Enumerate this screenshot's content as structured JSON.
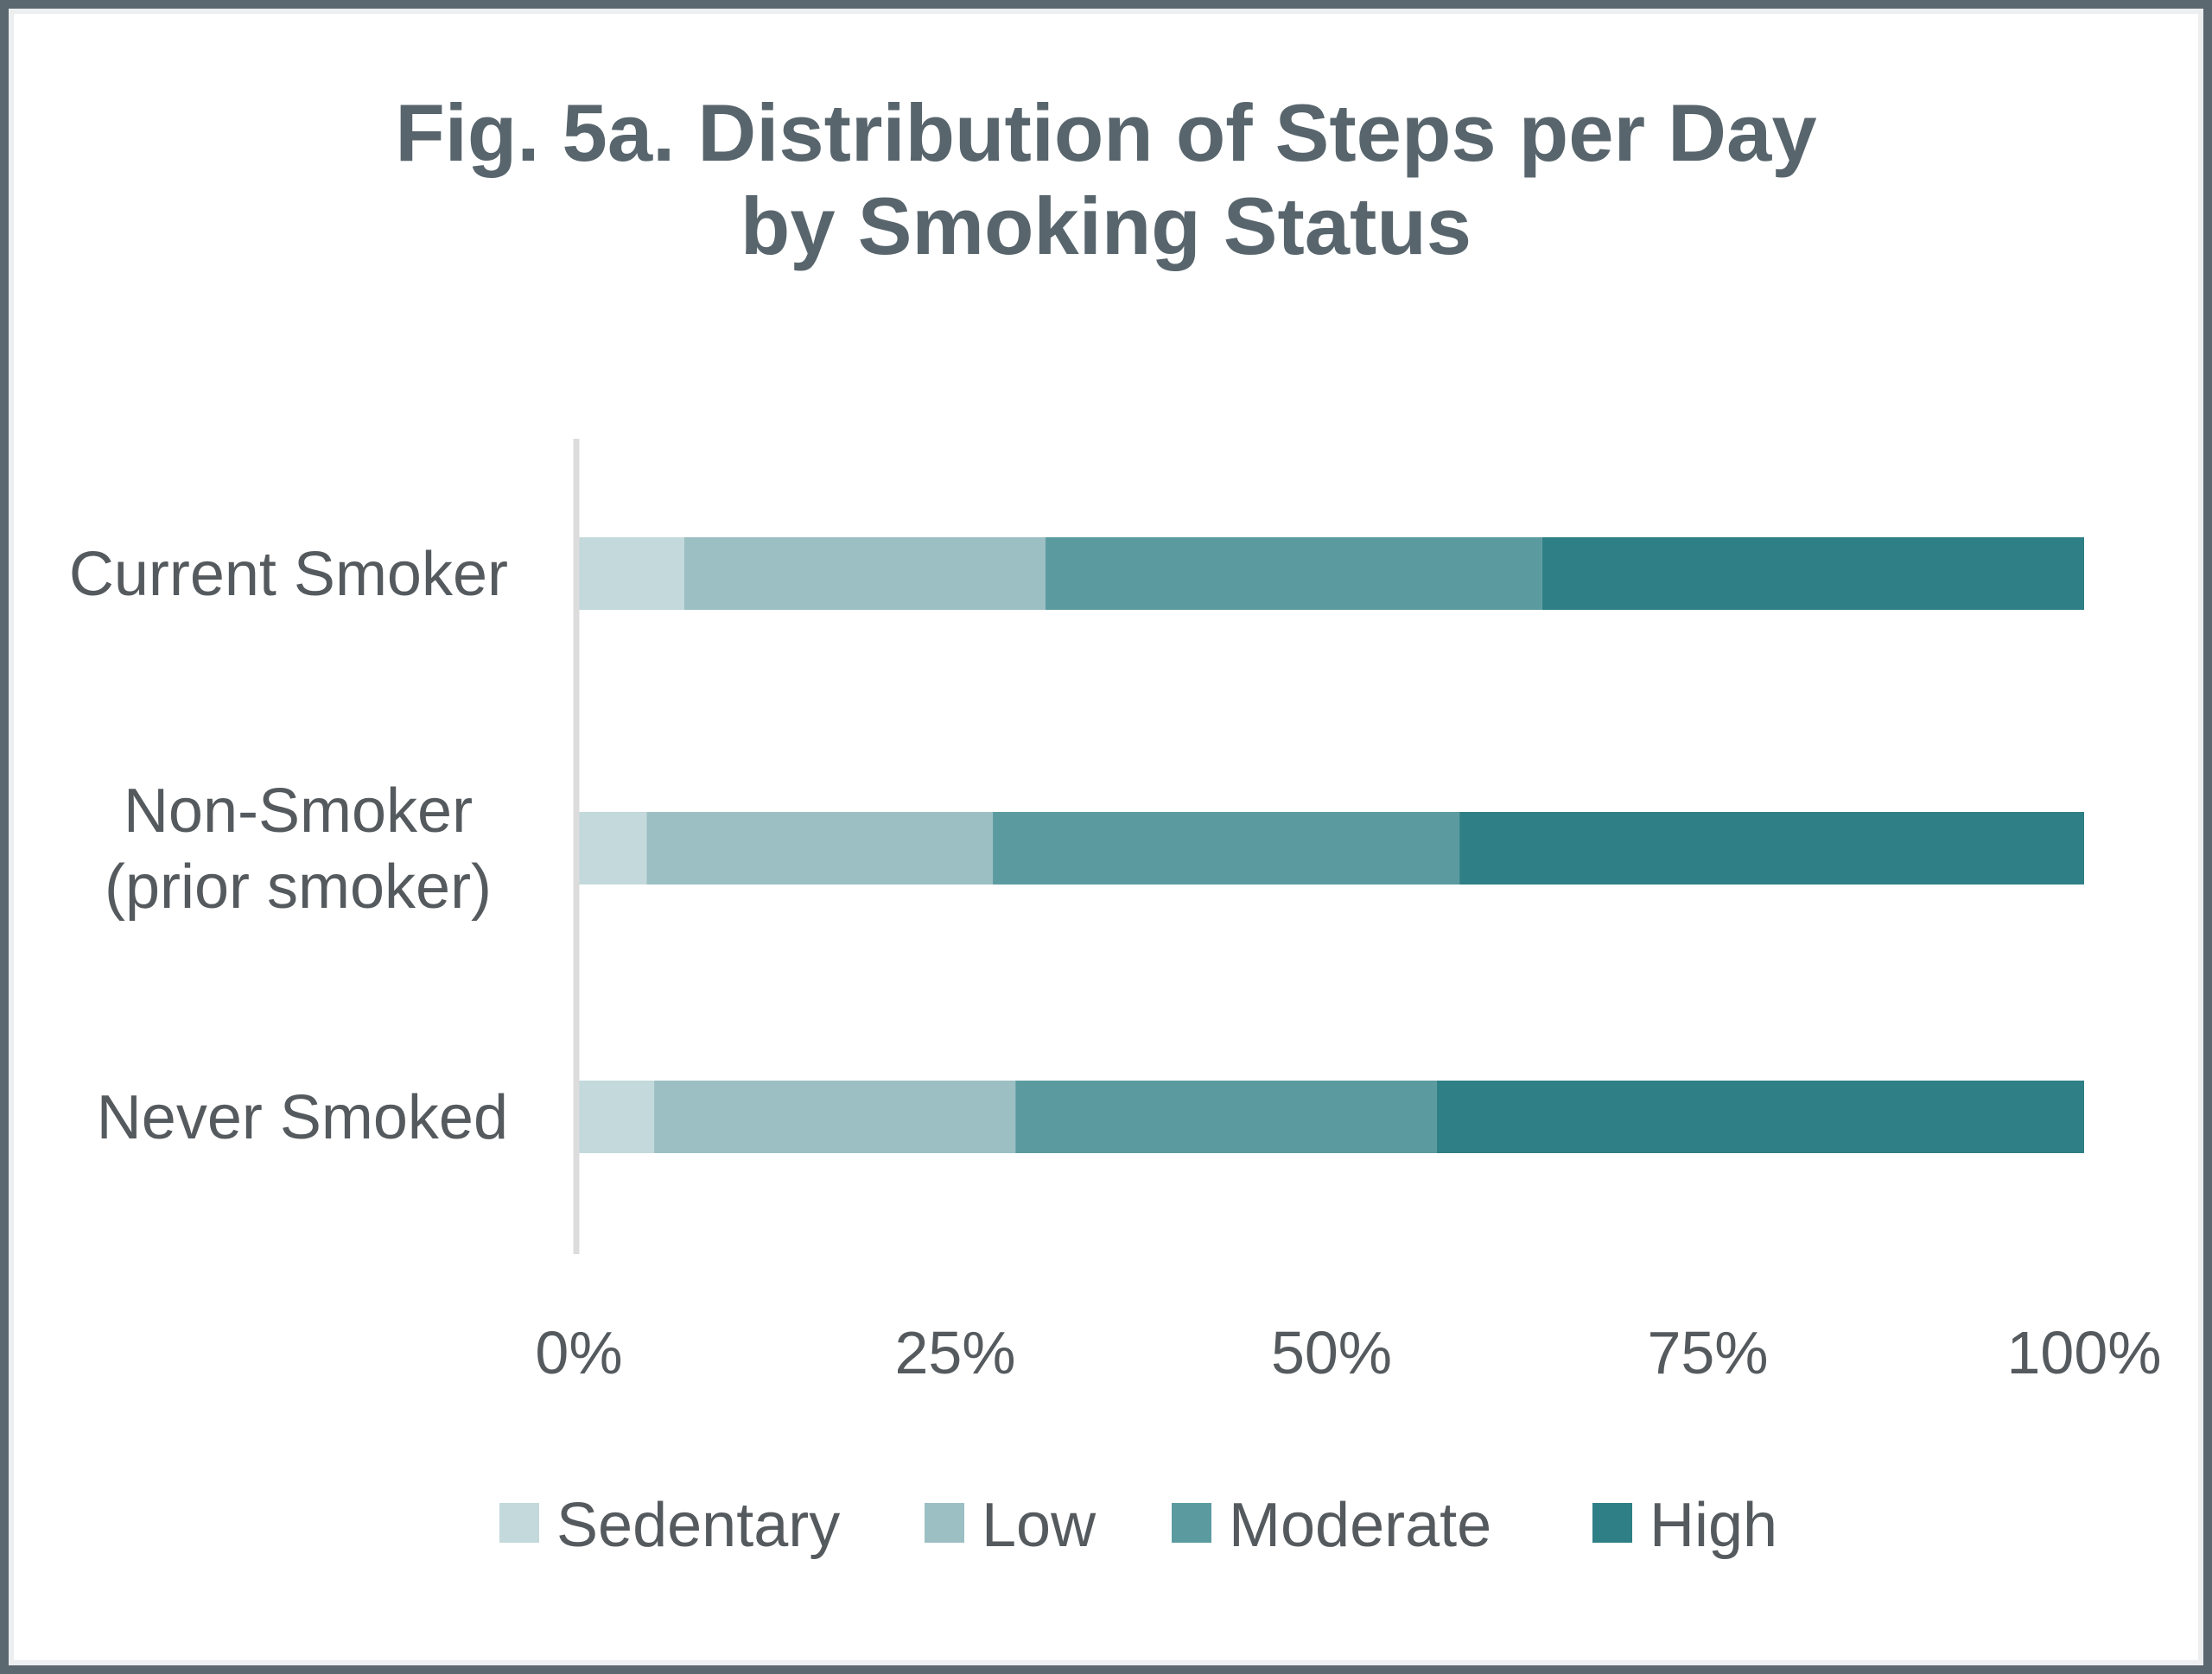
{
  "chart_data": {
    "type": "bar",
    "orientation": "horizontal",
    "stacked": true,
    "title": [
      "Fig. 5a. Distribution of Steps per Day",
      "by Smoking Status"
    ],
    "categories": [
      [
        "Current Smoker"
      ],
      [
        "Non-Smoker",
        "(prior smoker)"
      ],
      [
        "Never Smoked"
      ]
    ],
    "series": [
      {
        "name": "Sedentary",
        "color": "#c3d9dc",
        "values": [
          7,
          4.5,
          5
        ]
      },
      {
        "name": "Low",
        "color": "#9bbfc3",
        "values": [
          24,
          23,
          24
        ]
      },
      {
        "name": "Moderate",
        "color": "#5b9ba0",
        "values": [
          33,
          31,
          28
        ]
      },
      {
        "name": "High",
        "color": "#2f7f86",
        "values": [
          36,
          41.5,
          43
        ]
      }
    ],
    "xlim": [
      0,
      100
    ],
    "xticks": [
      "0%",
      "25%",
      "50%",
      "75%",
      "100%"
    ],
    "xtick_values": [
      0,
      25,
      50,
      75,
      100
    ],
    "grid": false,
    "legend_position": "bottom"
  }
}
